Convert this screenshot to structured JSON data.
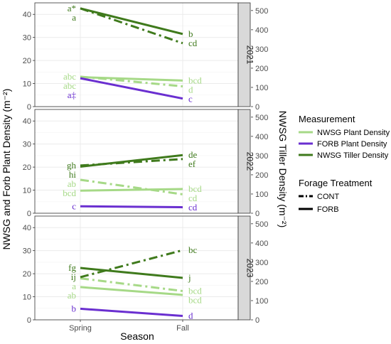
{
  "chart_data": {
    "type": "line",
    "xlabel": "Season",
    "ylabel": "NWSG and Forb Plant Density (m⁻²)",
    "y2label": "NWSG Tiller Density (m⁻²)",
    "categories": [
      "Spring",
      "Fall"
    ],
    "ylim": [
      0,
      45
    ],
    "yticks": [
      0,
      10,
      20,
      30,
      40
    ],
    "y2lim": [
      0,
      540
    ],
    "y2ticks": [
      0,
      100,
      200,
      300,
      400,
      500
    ],
    "panels": [
      {
        "strip": "2021",
        "series": [
          {
            "measurement": "NWSG Tiller Density",
            "treatment": "CONT",
            "values": [
              42.6,
              27.5
            ],
            "labels": [
              "a*",
              "cd"
            ]
          },
          {
            "measurement": "NWSG Tiller Density",
            "treatment": "FORB",
            "values": [
              42.6,
              31.5
            ],
            "labels": [
              "a",
              "b"
            ]
          },
          {
            "measurement": "NWSG Plant Density",
            "treatment": "CONT",
            "values": [
              13.0,
              8.8
            ],
            "labels": [
              "abc",
              "d"
            ]
          },
          {
            "measurement": "NWSG Plant Density",
            "treatment": "FORB",
            "values": [
              12.8,
              11.3
            ],
            "labels": [
              "abc",
              "bcd"
            ]
          },
          {
            "measurement": "FORB Plant Density",
            "treatment": "FORB",
            "values": [
              12.3,
              3.5
            ],
            "labels": [
              "a‡",
              "c"
            ]
          }
        ]
      },
      {
        "strip": "2022",
        "series": [
          {
            "measurement": "NWSG Tiller Density",
            "treatment": "CONT",
            "values": [
              20.7,
              23.5
            ],
            "labels": [
              "gh",
              "ef"
            ]
          },
          {
            "measurement": "NWSG Tiller Density",
            "treatment": "FORB",
            "values": [
              20.2,
              25.2
            ],
            "labels": [
              "hi",
              "de"
            ]
          },
          {
            "measurement": "NWSG Plant Density",
            "treatment": "CONT",
            "values": [
              14.5,
              8.2
            ],
            "labels": [
              "ab",
              "cd"
            ]
          },
          {
            "measurement": "NWSG Plant Density",
            "treatment": "FORB",
            "values": [
              9.8,
              10.5
            ],
            "labels": [
              "bcd",
              "bcd"
            ]
          },
          {
            "measurement": "FORB Plant Density",
            "treatment": "FORB",
            "values": [
              3.0,
              2.6
            ],
            "labels": [
              "c",
              "cd"
            ]
          }
        ]
      },
      {
        "strip": "2023",
        "series": [
          {
            "measurement": "NWSG Tiller Density",
            "treatment": "CONT",
            "values": [
              18.5,
              30.2
            ],
            "labels": [
              "ij",
              "bc"
            ]
          },
          {
            "measurement": "NWSG Tiller Density",
            "treatment": "FORB",
            "values": [
              22.5,
              18.2
            ],
            "labels": [
              "fg",
              "j"
            ]
          },
          {
            "measurement": "NWSG Plant Density",
            "treatment": "CONT",
            "values": [
              18.0,
              12.5
            ],
            "labels": [
              "a",
              "bcd"
            ]
          },
          {
            "measurement": "NWSG Plant Density",
            "treatment": "FORB",
            "values": [
              14.2,
              10.8
            ],
            "labels": [
              "ab",
              "bcd"
            ]
          },
          {
            "measurement": "FORB Plant Density",
            "treatment": "FORB",
            "values": [
              4.8,
              1.7
            ],
            "labels": [
              "b",
              "d"
            ]
          }
        ]
      }
    ],
    "legend": {
      "position": "right",
      "measurement_title": "Measurement",
      "measurements": [
        "NWSG Plant Density",
        "FORB Plant Density",
        "NWSG Tiller Density"
      ],
      "treatment_title": "Forage Treatment",
      "treatments": [
        "CONT",
        "FORB"
      ]
    },
    "colors": {
      "NWSG Plant Density": "#a6d987",
      "FORB Plant Density": "#6a2fd0",
      "NWSG Tiller Density": "#3f7a1c",
      "y2_axis_text": "#3f7a1c",
      "panel_background": "#ffffff",
      "grid": "#ebebeb",
      "strip_fill": "#d9d9d9"
    },
    "grid": true
  }
}
